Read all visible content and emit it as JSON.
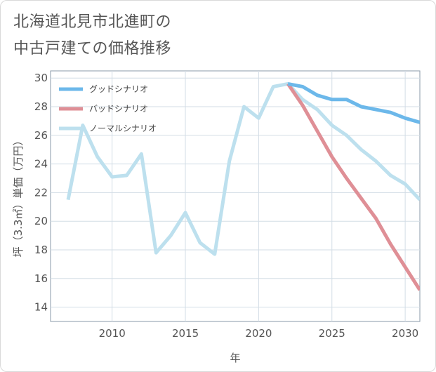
{
  "chart_data": {
    "type": "line",
    "title": "北海道北見市北進町の\n中古戸建ての価格推移",
    "xlabel": "年",
    "ylabel": "坪（3.3㎡）単価（万円）",
    "xlim": [
      2005.8,
      2031
    ],
    "ylim": [
      13,
      30.5
    ],
    "xticks": [
      2010,
      2015,
      2020,
      2025,
      2030
    ],
    "yticks": [
      14,
      16,
      18,
      20,
      22,
      24,
      26,
      28,
      30
    ],
    "legend_position": "top-left",
    "series": [
      {
        "name": "グッドシナリオ",
        "color": "#6cb8ea",
        "x": [
          2022,
          2023,
          2024,
          2025,
          2026,
          2027,
          2028,
          2029,
          2030,
          2031
        ],
        "y": [
          29.6,
          29.4,
          28.8,
          28.5,
          28.5,
          28.0,
          27.8,
          27.6,
          27.2,
          26.9
        ]
      },
      {
        "name": "バッドシナリオ",
        "color": "#df8f96",
        "x": [
          2022,
          2023,
          2024,
          2025,
          2026,
          2027,
          2028,
          2029,
          2030,
          2031
        ],
        "y": [
          29.6,
          28.1,
          26.3,
          24.5,
          23.0,
          21.6,
          20.2,
          18.4,
          16.8,
          15.2
        ]
      },
      {
        "name": "ノーマルシナリオ",
        "color": "#bde0ee",
        "x": [
          2007,
          2008,
          2009,
          2010,
          2011,
          2012,
          2013,
          2014,
          2015,
          2016,
          2017,
          2018,
          2019,
          2020,
          2021,
          2022,
          2023,
          2024,
          2025,
          2026,
          2027,
          2028,
          2029,
          2030,
          2031
        ],
        "y": [
          21.5,
          26.7,
          24.5,
          23.1,
          23.2,
          24.7,
          17.8,
          19.0,
          20.6,
          18.5,
          17.7,
          24.2,
          28.0,
          27.2,
          29.4,
          29.6,
          28.5,
          27.8,
          26.7,
          26.0,
          25.0,
          24.2,
          23.2,
          22.6,
          21.5
        ]
      }
    ]
  }
}
